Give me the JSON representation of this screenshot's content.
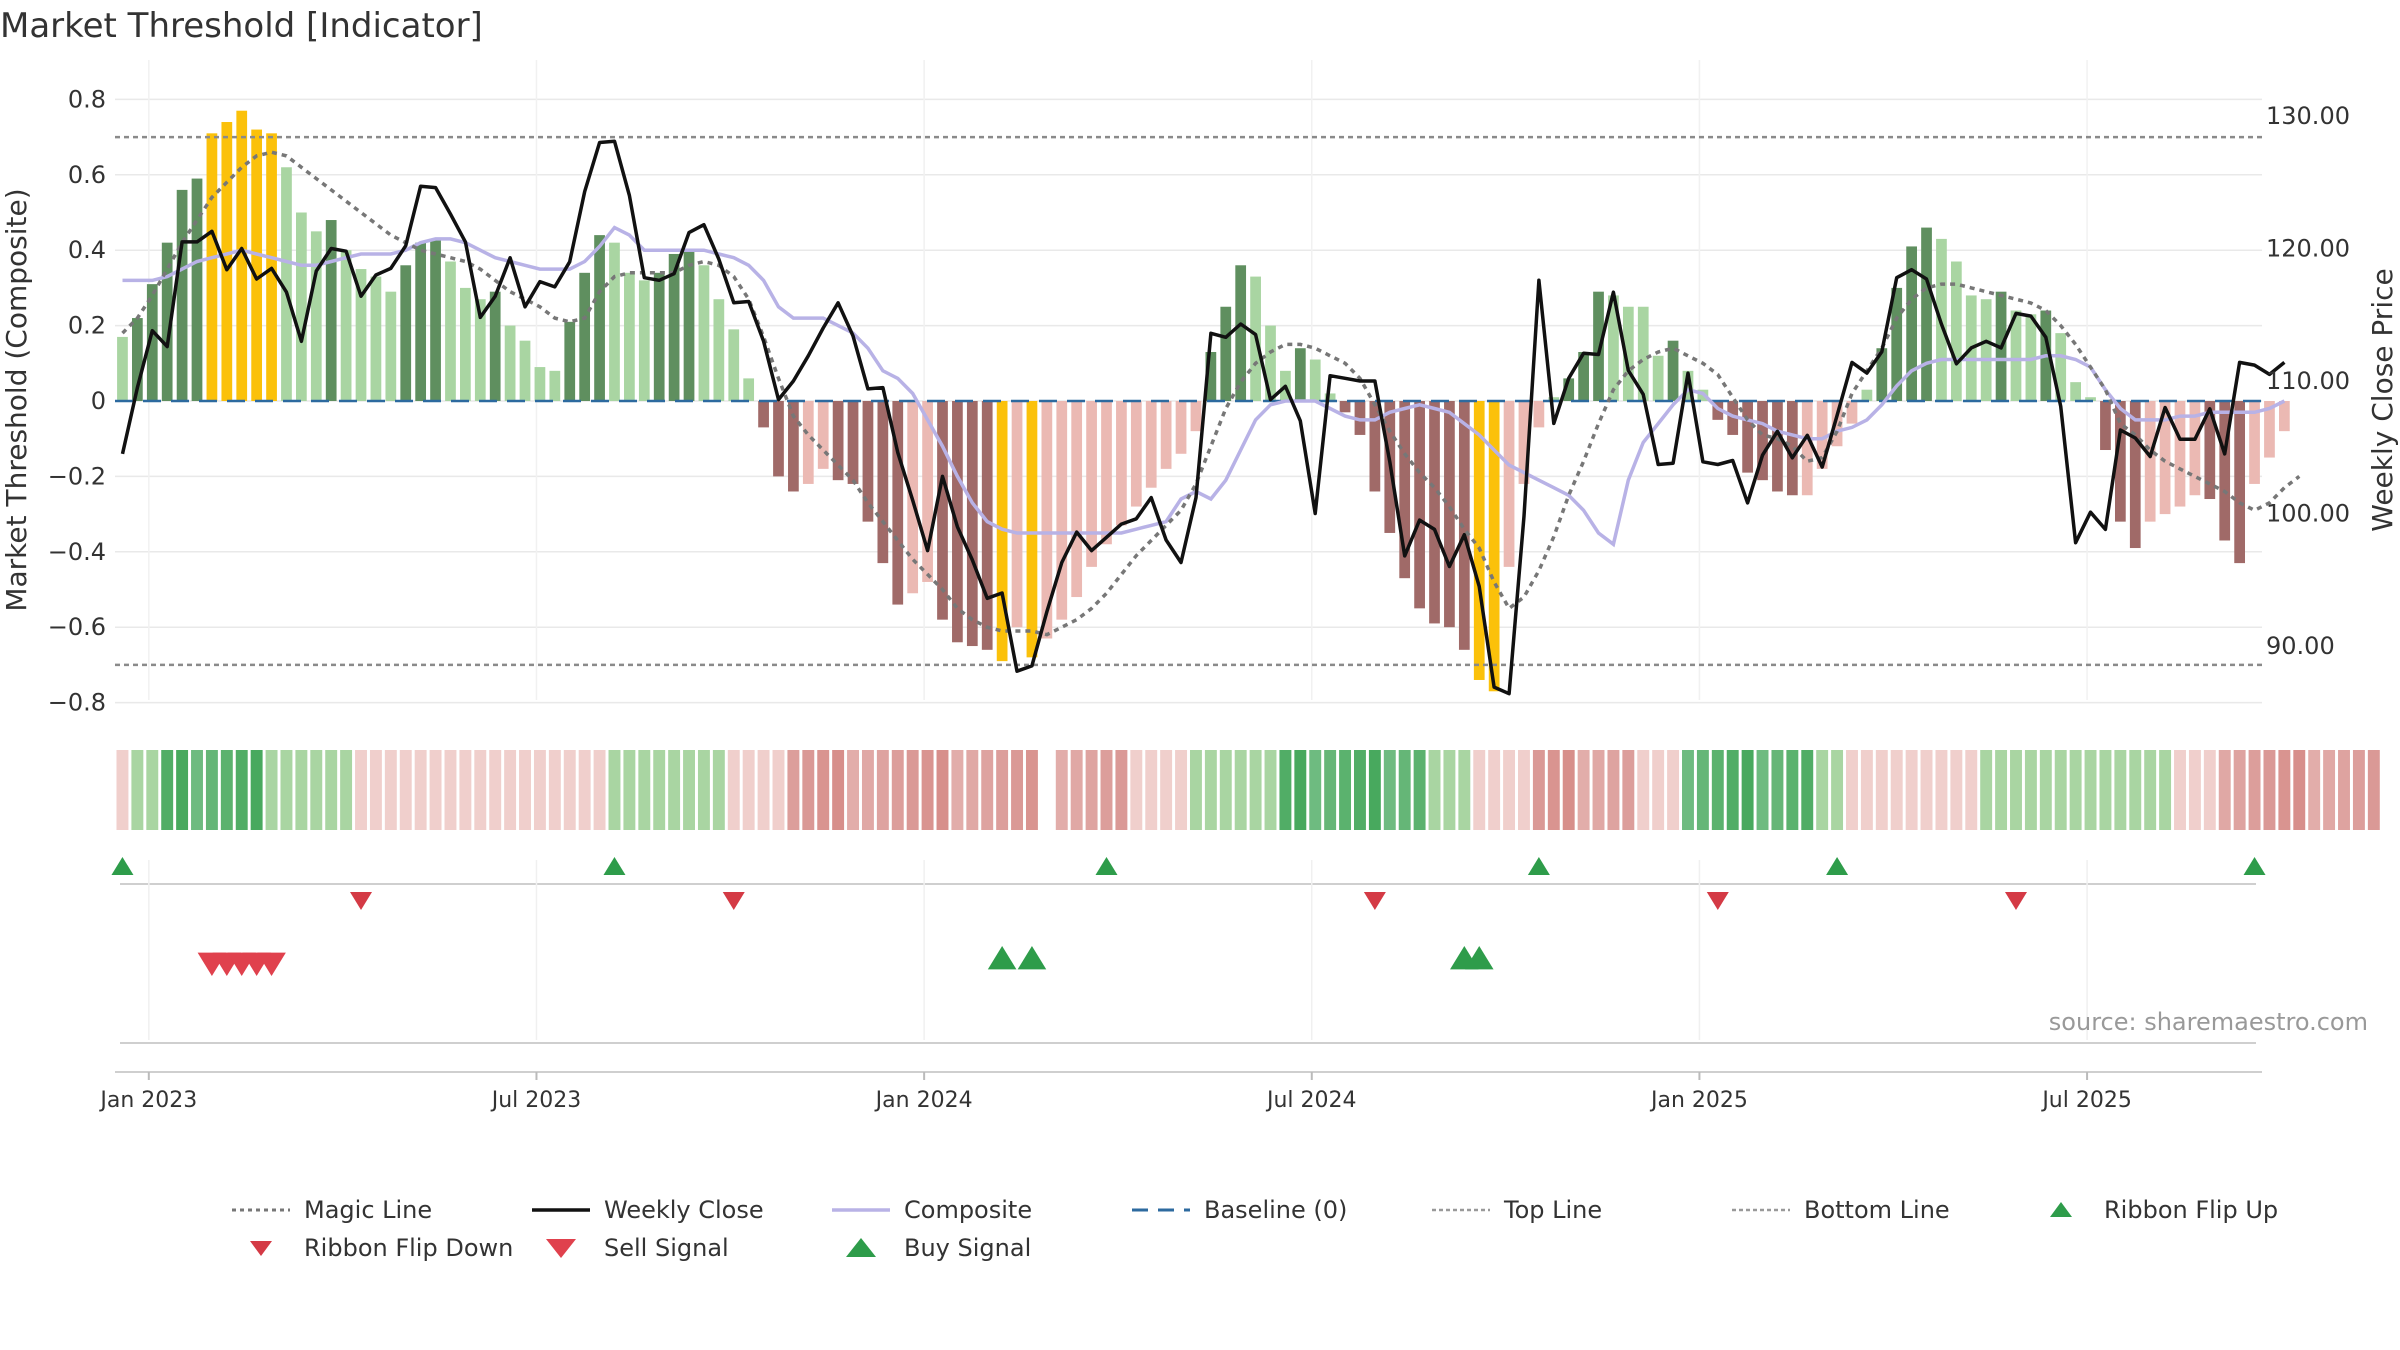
{
  "title": "Market Threshold [Indicator]",
  "source": "source: sharemaestro.com",
  "colors": {
    "strong_green": "#5f8f5f",
    "light_green": "#a9d5a2",
    "strong_red": "#a06a68",
    "light_red": "#ebb9b3",
    "yellow": "#fbc10a",
    "close_line": "#111111",
    "composite_line": "#b8b2e6",
    "magic_line": "#777777",
    "baseline": "#2d6a9f",
    "ribbon_green_dark": "#3ea455",
    "ribbon_red_dark": "#d58a86",
    "signal_green": "#2e9c4a",
    "signal_red": "#d43a45"
  },
  "chart_data": {
    "type": "bar",
    "title": "Market Threshold [Indicator]",
    "ylabel_left": "Market Threshold (Composite)",
    "ylabel_right": "Weekly Close Price",
    "ylim_left": [
      -0.85,
      0.85
    ],
    "ylim_right": [
      84.25,
      133.9
    ],
    "yticks_left": [
      "0.8",
      "0.6",
      "0.4",
      "0.2",
      "0",
      "−0.2",
      "−0.4",
      "−0.6",
      "−0.8"
    ],
    "yticks_right": [
      "130.00",
      "120.00",
      "110.00",
      "100.00",
      "90.00"
    ],
    "top_line": 0.7,
    "bottom_line": -0.7,
    "baseline": 0,
    "x_ticks": [
      "Jan 2023",
      "Jul 2023",
      "Jan 2024",
      "Jul 2024",
      "Jan 2025",
      "Jul 2025"
    ],
    "x_tick_weeks": [
      2,
      28,
      54,
      80,
      106,
      132
    ],
    "n_weeks": 144,
    "bar_values": [
      0.17,
      0.22,
      0.31,
      0.42,
      0.56,
      0.59,
      0.71,
      0.74,
      0.77,
      0.72,
      0.71,
      0.62,
      0.5,
      0.45,
      0.48,
      0.4,
      0.35,
      0.33,
      0.29,
      0.36,
      0.42,
      0.43,
      0.37,
      0.3,
      0.27,
      0.29,
      0.2,
      0.16,
      0.09,
      0.08,
      0.21,
      0.34,
      0.44,
      0.42,
      0.34,
      0.32,
      0.34,
      0.39,
      0.4,
      0.36,
      0.27,
      0.19,
      0.06,
      -0.07,
      -0.2,
      -0.24,
      -0.22,
      -0.18,
      -0.21,
      -0.22,
      -0.32,
      -0.43,
      -0.54,
      -0.51,
      -0.48,
      -0.58,
      -0.64,
      -0.65,
      -0.66,
      -0.69,
      -0.6,
      -0.68,
      -0.63,
      -0.58,
      -0.52,
      -0.44,
      -0.38,
      -0.33,
      -0.28,
      -0.23,
      -0.18,
      -0.14,
      -0.08,
      0.13,
      0.25,
      0.36,
      0.33,
      0.2,
      0.08,
      0.14,
      0.11,
      0.02,
      -0.03,
      -0.09,
      -0.24,
      -0.35,
      -0.47,
      -0.55,
      -0.59,
      -0.6,
      -0.66,
      -0.74,
      -0.77,
      -0.44,
      -0.22,
      -0.07,
      0.01,
      0.06,
      0.13,
      0.29,
      0.28,
      0.25,
      0.25,
      0.12,
      0.16,
      0.08,
      0.03,
      -0.05,
      -0.09,
      -0.19,
      -0.21,
      -0.24,
      -0.25,
      -0.25,
      -0.18,
      -0.12,
      -0.06,
      0.03,
      0.14,
      0.3,
      0.41,
      0.46,
      0.43,
      0.37,
      0.28,
      0.27,
      0.29,
      0.24,
      0.23,
      0.24,
      0.18,
      0.05,
      0.01,
      -0.13,
      -0.32,
      -0.39,
      -0.32,
      -0.3,
      -0.28,
      -0.25,
      -0.26,
      -0.37,
      -0.43,
      -0.22,
      -0.15,
      -0.08
    ],
    "weekly_close": [
      104.5,
      109.5,
      113.8,
      112.6,
      120.5,
      120.5,
      121.3,
      118.4,
      120.0,
      117.7,
      118.5,
      116.7,
      113.0,
      118.3,
      120.0,
      119.8,
      116.4,
      118.0,
      118.5,
      120.2,
      124.7,
      124.6,
      122.6,
      120.5,
      114.8,
      116.4,
      119.3,
      115.6,
      117.5,
      117.1,
      119.0,
      124.3,
      128.0,
      128.1,
      124.0,
      117.8,
      117.6,
      118.1,
      121.2,
      121.8,
      119.2,
      115.9,
      116.0,
      113.0,
      108.6,
      110.0,
      111.9,
      114.0,
      115.9,
      113.4,
      109.4,
      109.5,
      104.6,
      101.0,
      97.2,
      102.8,
      99.0,
      96.5,
      93.6,
      94.0,
      88.1,
      88.5,
      92.6,
      96.3,
      98.6,
      97.2,
      98.2,
      99.2,
      99.6,
      101.2,
      98.0,
      96.3,
      101.2,
      113.6,
      113.3,
      114.3,
      113.5,
      108.6,
      109.6,
      107.0,
      100.0,
      110.4,
      110.2,
      110.0,
      110.0,
      103.9,
      96.8,
      99.5,
      98.8,
      96.0,
      98.4,
      94.5,
      86.9,
      86.4,
      99.8,
      117.6,
      106.8,
      110.2,
      112.1,
      112.0,
      116.7,
      110.8,
      109.0,
      103.7,
      103.8,
      110.6,
      103.9,
      103.7,
      104.0,
      100.8,
      104.4,
      106.2,
      104.2,
      105.9,
      103.5,
      107.4,
      111.4,
      110.6,
      112.2,
      117.8,
      118.4,
      117.7,
      114.3,
      111.3,
      112.5,
      113.0,
      112.5,
      115.1,
      114.9,
      113.3,
      108.1,
      97.8,
      100.1,
      98.8,
      106.3,
      105.7,
      104.3,
      108.0,
      105.6,
      105.6,
      107.9,
      104.5,
      111.4,
      111.2,
      110.5,
      111.4
    ],
    "composite": [
      0.32,
      0.32,
      0.32,
      0.33,
      0.35,
      0.37,
      0.38,
      0.39,
      0.4,
      0.39,
      0.38,
      0.37,
      0.36,
      0.36,
      0.37,
      0.38,
      0.39,
      0.39,
      0.39,
      0.4,
      0.42,
      0.43,
      0.43,
      0.42,
      0.4,
      0.38,
      0.37,
      0.36,
      0.35,
      0.35,
      0.35,
      0.37,
      0.41,
      0.46,
      0.44,
      0.4,
      0.4,
      0.4,
      0.4,
      0.4,
      0.39,
      0.38,
      0.36,
      0.32,
      0.25,
      0.22,
      0.22,
      0.22,
      0.2,
      0.18,
      0.14,
      0.08,
      0.06,
      0.02,
      -0.05,
      -0.12,
      -0.2,
      -0.27,
      -0.32,
      -0.34,
      -0.35,
      -0.35,
      -0.35,
      -0.35,
      -0.35,
      -0.35,
      -0.35,
      -0.35,
      -0.34,
      -0.33,
      -0.32,
      -0.26,
      -0.24,
      -0.26,
      -0.21,
      -0.13,
      -0.05,
      -0.01,
      0.0,
      0.0,
      0.0,
      -0.02,
      -0.04,
      -0.05,
      -0.05,
      -0.03,
      -0.02,
      -0.01,
      -0.02,
      -0.03,
      -0.06,
      -0.09,
      -0.13,
      -0.17,
      -0.19,
      -0.21,
      -0.23,
      -0.25,
      -0.29,
      -0.35,
      -0.38,
      -0.21,
      -0.11,
      -0.06,
      -0.01,
      0.03,
      0.02,
      -0.02,
      -0.04,
      -0.05,
      -0.06,
      -0.08,
      -0.09,
      -0.1,
      -0.1,
      -0.08,
      -0.07,
      -0.05,
      -0.01,
      0.04,
      0.08,
      0.1,
      0.11,
      0.11,
      0.11,
      0.11,
      0.11,
      0.11,
      0.11,
      0.12,
      0.12,
      0.11,
      0.09,
      0.03,
      -0.02,
      -0.05,
      -0.05,
      -0.05,
      -0.04,
      -0.04,
      -0.03,
      -0.03,
      -0.03,
      -0.03,
      -0.02,
      0.0
    ],
    "magic_line": [
      0.18,
      0.22,
      0.28,
      0.35,
      0.42,
      0.48,
      0.54,
      0.58,
      0.62,
      0.65,
      0.66,
      0.65,
      0.62,
      0.59,
      0.56,
      0.53,
      0.5,
      0.47,
      0.44,
      0.42,
      0.4,
      0.39,
      0.38,
      0.37,
      0.35,
      0.32,
      0.29,
      0.27,
      0.25,
      0.22,
      0.21,
      0.22,
      0.29,
      0.33,
      0.34,
      0.34,
      0.34,
      0.34,
      0.36,
      0.37,
      0.36,
      0.33,
      0.27,
      0.17,
      0.06,
      -0.04,
      -0.09,
      -0.13,
      -0.17,
      -0.21,
      -0.27,
      -0.32,
      -0.37,
      -0.42,
      -0.46,
      -0.5,
      -0.55,
      -0.58,
      -0.6,
      -0.61,
      -0.61,
      -0.61,
      -0.62,
      -0.6,
      -0.58,
      -0.55,
      -0.51,
      -0.46,
      -0.41,
      -0.37,
      -0.33,
      -0.29,
      -0.22,
      -0.12,
      -0.02,
      0.05,
      0.1,
      0.13,
      0.15,
      0.15,
      0.14,
      0.12,
      0.1,
      0.06,
      -0.01,
      -0.08,
      -0.14,
      -0.19,
      -0.23,
      -0.28,
      -0.34,
      -0.39,
      -0.48,
      -0.55,
      -0.52,
      -0.45,
      -0.36,
      -0.25,
      -0.16,
      -0.06,
      0.03,
      0.08,
      0.11,
      0.13,
      0.14,
      0.12,
      0.1,
      0.07,
      0.01,
      -0.05,
      -0.09,
      -0.1,
      -0.12,
      -0.16,
      -0.15,
      -0.08,
      0.02,
      0.08,
      0.14,
      0.22,
      0.27,
      0.3,
      0.31,
      0.31,
      0.3,
      0.29,
      0.28,
      0.27,
      0.26,
      0.24,
      0.2,
      0.15,
      0.09,
      0.03,
      -0.06,
      -0.09,
      -0.13,
      -0.16,
      -0.18,
      -0.2,
      -0.22,
      -0.24,
      -0.27,
      -0.29,
      -0.27,
      -0.23,
      -0.2
    ],
    "ribbon": [
      -1,
      1,
      1,
      2,
      2,
      2,
      2,
      2,
      2,
      2,
      1,
      1,
      1,
      1,
      1,
      1,
      -1,
      -1,
      -1,
      -1,
      -1,
      -1,
      -1,
      -1,
      -1,
      -1,
      -1,
      -1,
      -1,
      -1,
      -1,
      -1,
      -1,
      1,
      1,
      1,
      1,
      1,
      1,
      1,
      1,
      -1,
      -1,
      -1,
      -1,
      -2,
      -2,
      -2,
      -2,
      -2,
      -2,
      -2,
      -2,
      -2,
      -2,
      -2,
      -2,
      -2,
      -2,
      -2,
      -2,
      -2,
      null,
      -2,
      -2,
      -2,
      -2,
      -2,
      -1,
      -1,
      -1,
      -1,
      1,
      1,
      1,
      1,
      1,
      1,
      2,
      2,
      2,
      2,
      2,
      2,
      2,
      2,
      2,
      2,
      1,
      1,
      1,
      -1,
      -1,
      -1,
      -1,
      -2,
      -2,
      -2,
      -2,
      -2,
      -2,
      -2,
      -1,
      -1,
      -1,
      2,
      2,
      2,
      2,
      2,
      2,
      2,
      2,
      2,
      1,
      1,
      -1,
      -1,
      -1,
      -1,
      -1,
      -1,
      -1,
      -1,
      -1,
      1,
      1,
      1,
      1,
      1,
      1,
      1,
      1,
      1,
      1,
      1,
      1,
      1,
      -1,
      -1,
      -1,
      -2,
      -2,
      -2,
      -2,
      -2,
      -2,
      -2,
      -2,
      -2,
      -2,
      -2
    ],
    "ribbon_flip_up_weeks": [
      0,
      33,
      66,
      95,
      115,
      143
    ],
    "ribbon_flip_down_weeks": [
      16,
      41,
      84,
      107,
      127
    ],
    "sell_signal_weeks": [
      6,
      7,
      8,
      9,
      10
    ],
    "buy_signal_weeks": [
      59,
      61,
      90,
      91
    ],
    "legend": [
      {
        "key": "magic",
        "label": "Magic Line"
      },
      {
        "key": "close",
        "label": "Weekly Close"
      },
      {
        "key": "composite",
        "label": "Composite"
      },
      {
        "key": "baseline",
        "label": "Baseline (0)"
      },
      {
        "key": "top",
        "label": "Top Line"
      },
      {
        "key": "bottom",
        "label": "Bottom Line"
      },
      {
        "key": "flip_up",
        "label": "Ribbon Flip Up"
      },
      {
        "key": "flip_down",
        "label": "Ribbon Flip Down"
      },
      {
        "key": "sell",
        "label": "Sell Signal"
      },
      {
        "key": "buy",
        "label": "Buy Signal"
      }
    ]
  }
}
